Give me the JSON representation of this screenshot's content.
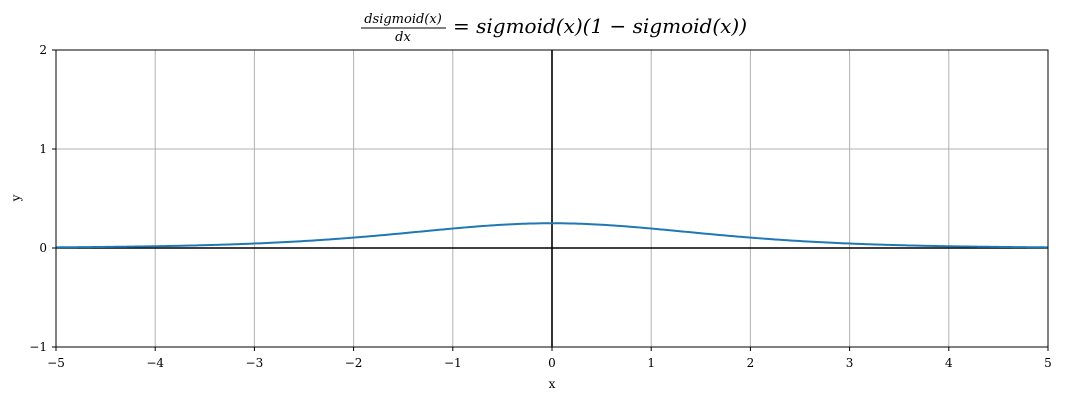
{
  "chart_data": {
    "type": "line",
    "title": {
      "frac_numerator": "dsigmoid(x)",
      "frac_denominator": "dx",
      "rhs": "= sigmoid(x)(1 − sigmoid(x))"
    },
    "xlabel": "x",
    "ylabel": "y",
    "xlim": [
      -5,
      5
    ],
    "ylim": [
      -1,
      2
    ],
    "x_ticks": [
      -5,
      -4,
      -3,
      -2,
      -1,
      0,
      1,
      2,
      3,
      4,
      5
    ],
    "y_ticks": [
      -1,
      0,
      1,
      2
    ],
    "x_tick_labels": [
      "−5",
      "−4",
      "−3",
      "−2",
      "−1",
      "0",
      "1",
      "2",
      "3",
      "4",
      "5"
    ],
    "y_tick_labels": [
      "−1",
      "0",
      "1",
      "2"
    ],
    "grid": true,
    "series": [
      {
        "function": "sigmoid(x)*(1-sigmoid(x))",
        "color": "#1f77b4",
        "x": [
          -5,
          -4,
          -3,
          -2,
          -1,
          -0.5,
          0,
          0.5,
          1,
          2,
          3,
          4,
          5
        ],
        "y": [
          0.0066,
          0.0177,
          0.0452,
          0.105,
          0.1966,
          0.235,
          0.25,
          0.235,
          0.1966,
          0.105,
          0.0452,
          0.0177,
          0.0066
        ]
      }
    ],
    "axis_line_color": "#000000",
    "grid_color": "#b0b0b0"
  }
}
